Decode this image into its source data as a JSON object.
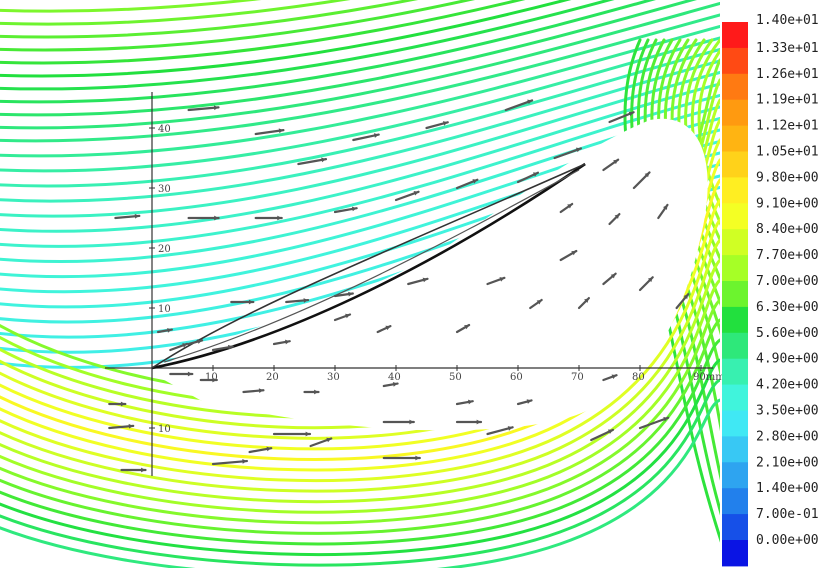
{
  "chart_data": {
    "type": "streamline",
    "colorbar": {
      "labels": [
        "1.40e+01",
        "1.33e+01",
        "1.26e+01",
        "1.19e+01",
        "1.12e+01",
        "1.05e+01",
        "9.80e+00",
        "9.10e+00",
        "8.40e+00",
        "7.70e+00",
        "7.00e+00",
        "6.30e+00",
        "5.60e+00",
        "4.90e+00",
        "4.20e+00",
        "3.50e+00",
        "2.80e+00",
        "2.10e+00",
        "1.40e+00",
        "7.00e-01",
        "0.00e+00"
      ],
      "colors": [
        "#ff1a1a",
        "#ff4a14",
        "#ff7a12",
        "#ff9a10",
        "#ffb412",
        "#ffd21a",
        "#ffee22",
        "#f4ff24",
        "#d0ff24",
        "#a6ff26",
        "#6cf42e",
        "#22e03e",
        "#2ee87a",
        "#38f0b0",
        "#40f4dc",
        "#40e8f4",
        "#38c8f4",
        "#2ea4f0",
        "#2280ec",
        "#1650e8",
        "#0a14e4"
      ],
      "min": 0.0,
      "max": 14.0
    },
    "x_ticks": [
      "10",
      "20",
      "30",
      "40",
      "50",
      "60",
      "70",
      "80",
      "90mm"
    ],
    "y_ticks_up": [
      "10",
      "20",
      "30",
      "40"
    ],
    "y_ticks_down": [
      "10"
    ],
    "x_range_mm": [
      -8,
      92
    ],
    "y_range_mm": [
      -18,
      46
    ]
  }
}
